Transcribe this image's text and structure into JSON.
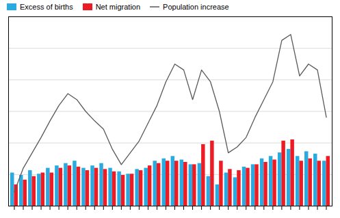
{
  "chart_data": {
    "type": "bar",
    "categories": [
      null,
      null,
      null,
      null,
      null,
      null,
      null,
      null,
      null,
      null,
      null,
      null,
      null,
      null,
      null,
      null,
      null,
      null,
      null,
      null,
      null,
      null,
      null,
      null,
      null,
      null,
      null,
      null,
      null,
      null,
      null,
      null,
      null,
      null,
      null,
      null
    ],
    "series": [
      {
        "name": "Excess of births",
        "type": "bar",
        "color": "#29ABE2",
        "values": [
          1400,
          1300,
          1500,
          1350,
          1600,
          1700,
          1800,
          1900,
          1600,
          1700,
          1800,
          1600,
          1450,
          1350,
          1550,
          1600,
          1900,
          2000,
          2100,
          1950,
          1750,
          1800,
          1250,
          900,
          1400,
          1200,
          1650,
          1750,
          2000,
          2100,
          2250,
          2400,
          2100,
          2300,
          2200,
          1900
        ]
      },
      {
        "name": "Net migration",
        "type": "bar",
        "color": "#ED1C24",
        "values": [
          900,
          1100,
          1250,
          1400,
          1400,
          1600,
          1700,
          1650,
          1500,
          1600,
          1550,
          1450,
          1300,
          1350,
          1500,
          1700,
          1800,
          1900,
          1900,
          1850,
          1750,
          2600,
          2750,
          1900,
          1550,
          1500,
          1600,
          1750,
          1850,
          1950,
          2750,
          2800,
          1900,
          2000,
          1900,
          2100
        ]
      },
      {
        "name": "Population increase",
        "type": "line",
        "color": "#595959",
        "values": [
          600,
          1600,
          2250,
          2900,
          3600,
          4250,
          4750,
          4500,
          4000,
          3600,
          3250,
          2400,
          1750,
          2250,
          2750,
          3500,
          4250,
          5250,
          6000,
          5750,
          4500,
          5750,
          5250,
          4000,
          2250,
          2500,
          2900,
          3750,
          4500,
          5250,
          7000,
          7250,
          5500,
          6000,
          5750,
          3750
        ]
      }
    ],
    "ylim": [
      0,
      8000
    ],
    "yticks": [
      1333.3333333333333,
      2666.6666666666665,
      4000,
      5333.333333333333,
      6666.666666666667,
      8000
    ],
    "grid": true,
    "legend": "upper left",
    "tick_labels": false
  }
}
